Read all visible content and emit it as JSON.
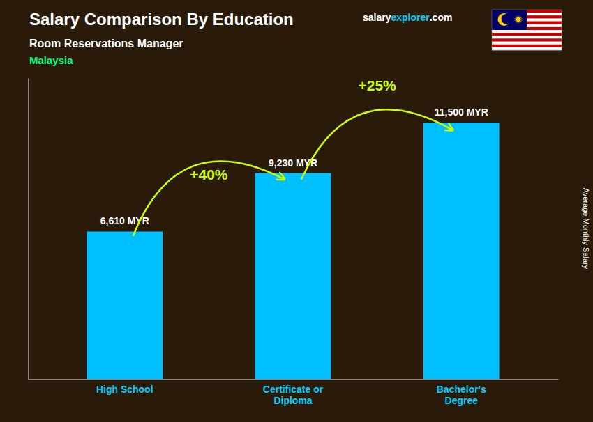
{
  "chart_data": {
    "type": "bar",
    "title": "Salary Comparison By Education",
    "subtitle": "Room Reservations Manager",
    "ylabel": "Average Monthly Salary",
    "annotations": {
      "country": "Malaysia",
      "watermark": [
        "salary",
        "explorer",
        ".com"
      ],
      "changes": [
        "+40%",
        "+25%"
      ]
    },
    "categories": [
      "High School",
      "Certificate or\nDiploma",
      "Bachelor's\nDegree"
    ],
    "values": [
      6610,
      9230,
      11500
    ],
    "value_labels": [
      "6,610 MYR",
      "9,230 MYR",
      "11,500 MYR"
    ],
    "data_labels": true,
    "color": "#00bfff",
    "ylim": [
      0,
      13500
    ],
    "tick_labels": "x",
    "grid": false
  }
}
